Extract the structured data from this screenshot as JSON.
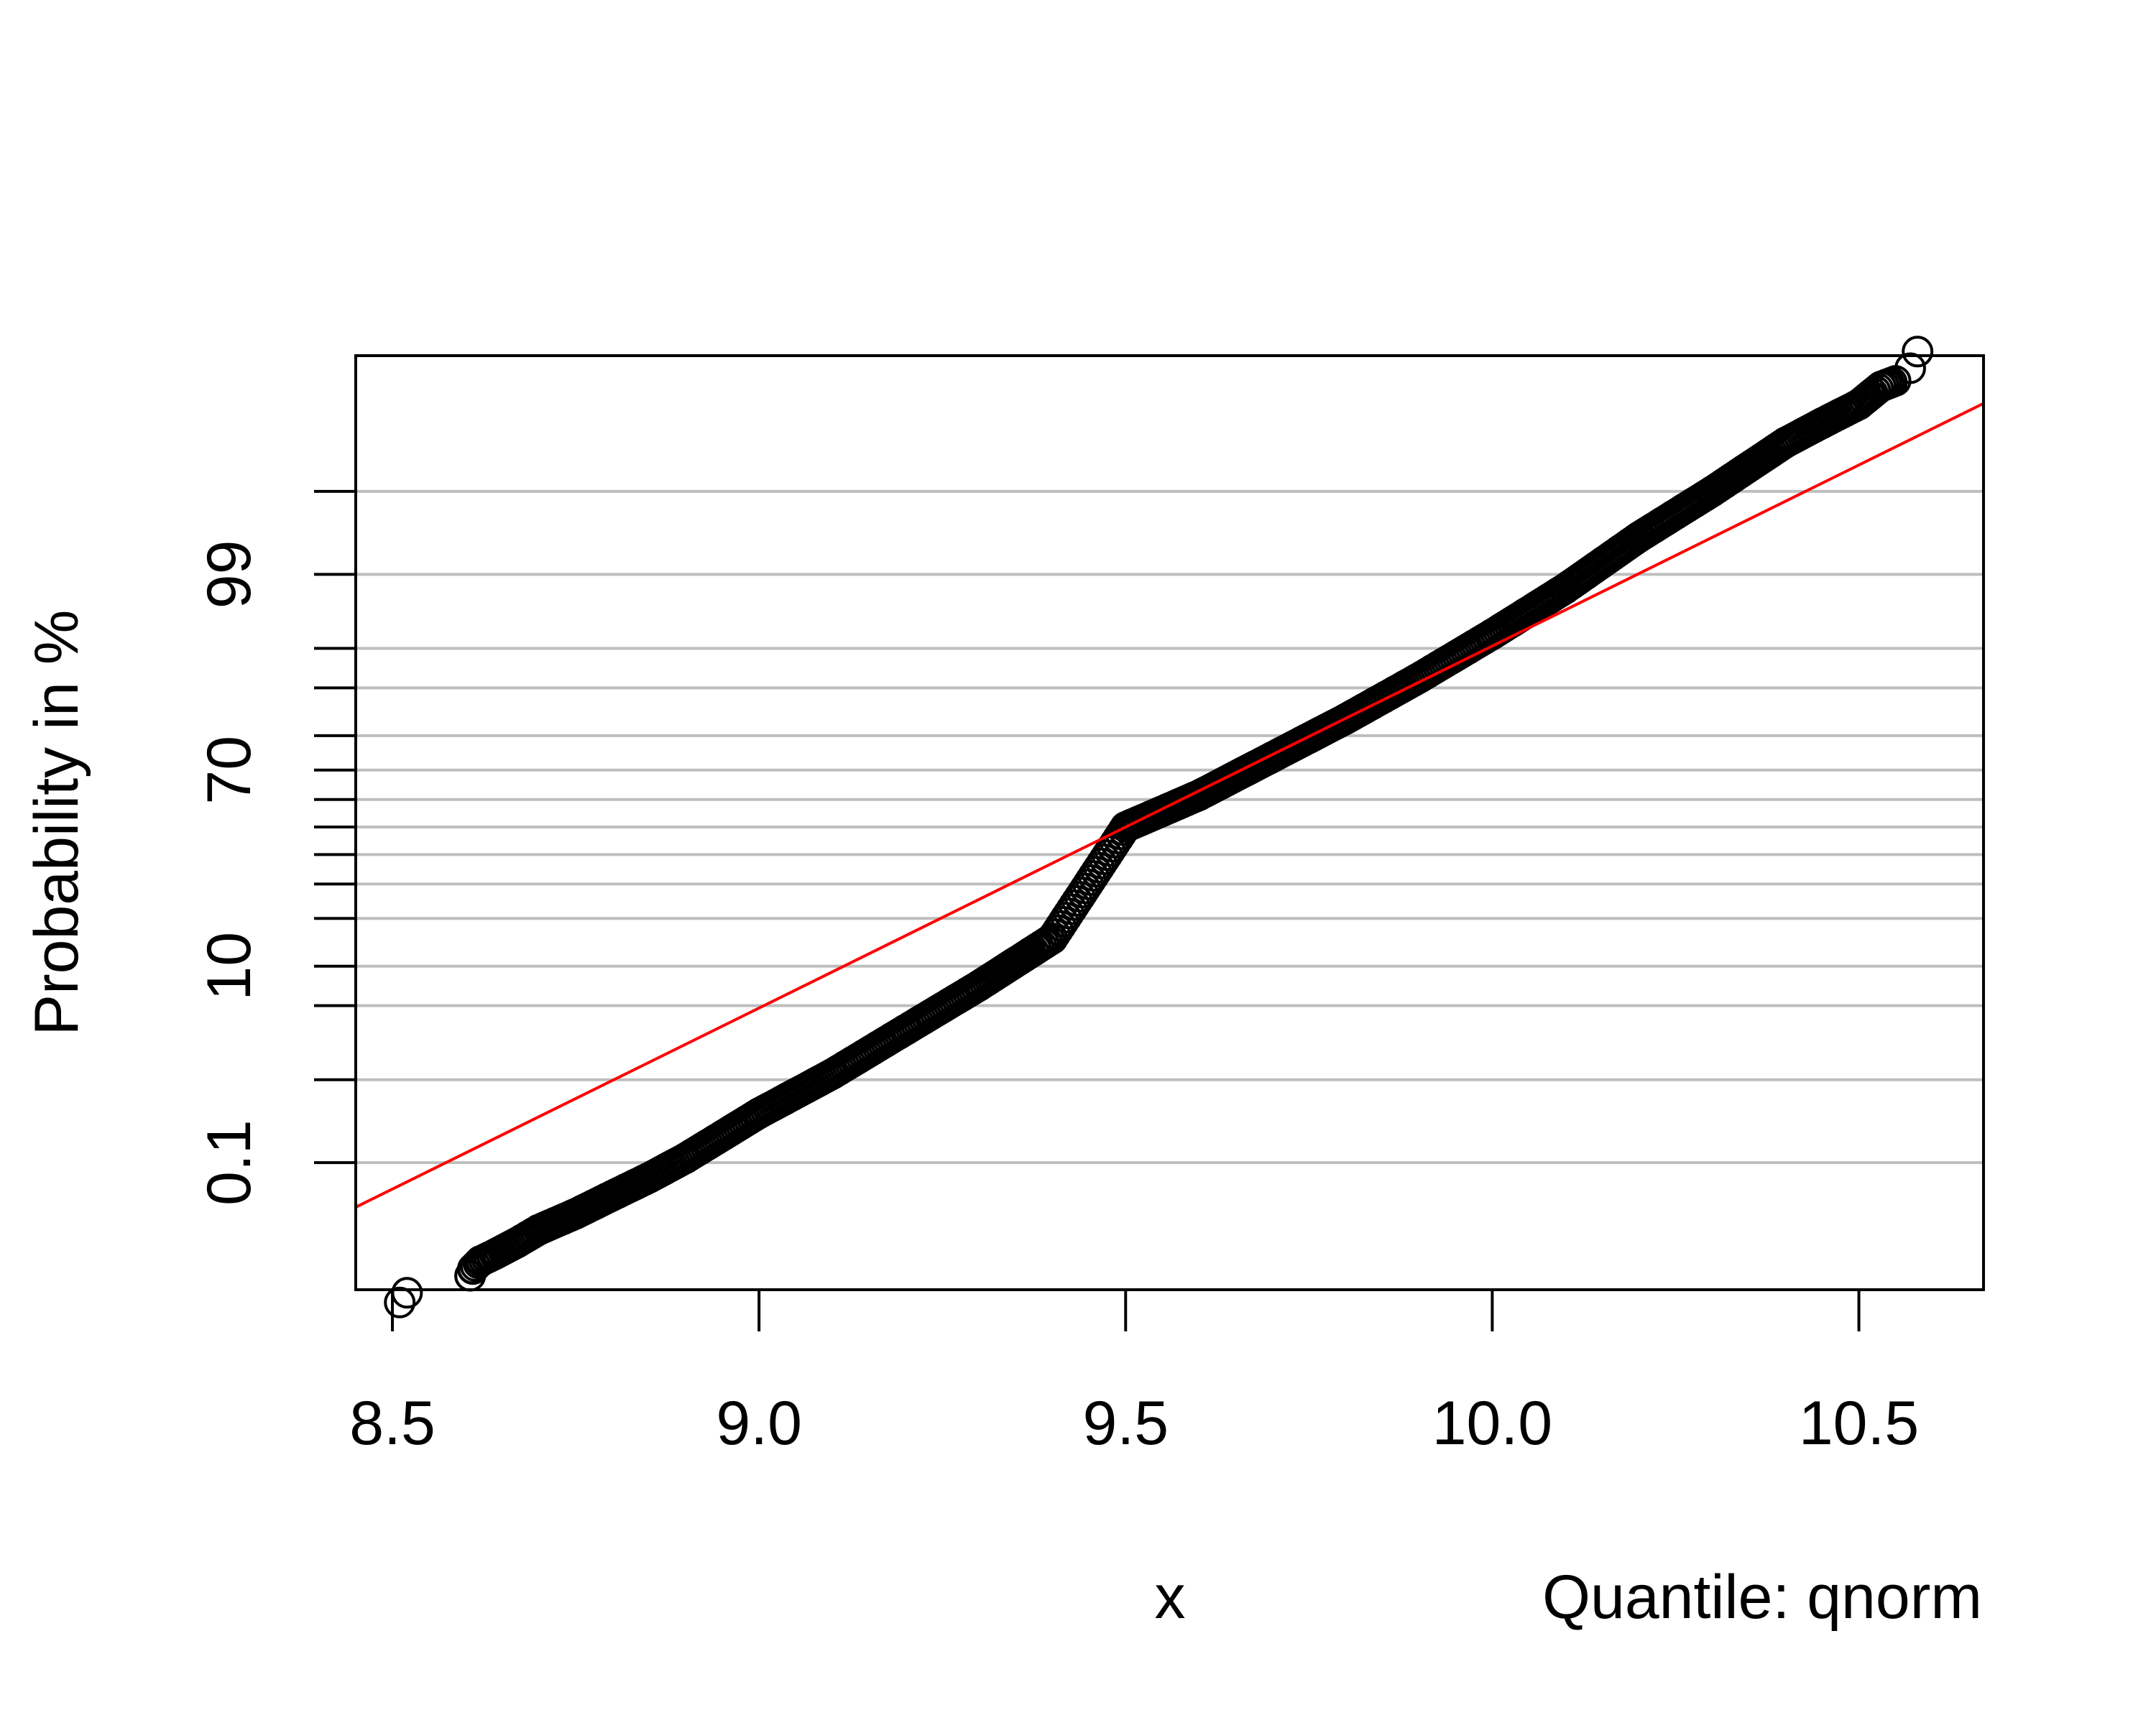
{
  "chart_data": {
    "type": "scatter",
    "title": "",
    "xlabel": "x",
    "ylabel": "Probability in %",
    "note": "Quantile: qnorm",
    "xlim": [
      8.45,
      10.67
    ],
    "x_ticks": [
      8.5,
      9.0,
      9.5,
      10.0,
      10.5
    ],
    "x_tick_labels": [
      "8.5",
      "9.0",
      "9.5",
      "10.0",
      "10.5"
    ],
    "y_scale": "normal-quantile",
    "y_ticks_percent": [
      0.1,
      1,
      5,
      10,
      20,
      30,
      40,
      50,
      60,
      70,
      80,
      90,
      95,
      99,
      99.9
    ],
    "y_tick_labels": [
      {
        "value": 0.1,
        "label": "0.1"
      },
      {
        "value": 10,
        "label": "10"
      },
      {
        "value": 70,
        "label": "70"
      },
      {
        "value": 99,
        "label": "99"
      }
    ],
    "grid": "horizontal",
    "fit_line": {
      "mean": 9.5,
      "sd": 0.3,
      "color": "#ff0000"
    },
    "series": [
      {
        "style": "open-circle",
        "points": [
          {
            "x": 8.51,
            "p": 0.0006
          },
          {
            "x": 8.52,
            "p": 0.0009
          },
          {
            "x": 8.606,
            "p": 0.0018
          },
          {
            "x": 8.61,
            "p": 0.0024
          },
          {
            "x": 8.62,
            "p": 0.0032
          },
          {
            "x": 8.64,
            "p": 0.0042
          },
          {
            "x": 8.67,
            "p": 0.0065
          },
          {
            "x": 8.7,
            "p": 0.0105
          },
          {
            "x": 8.75,
            "p": 0.0185
          },
          {
            "x": 8.8,
            "p": 0.0345
          },
          {
            "x": 8.85,
            "p": 0.062
          },
          {
            "x": 8.9,
            "p": 0.115
          },
          {
            "x": 9.0,
            "p": 0.42
          },
          {
            "x": 9.1,
            "p": 1.15
          },
          {
            "x": 9.2,
            "p": 3.1
          },
          {
            "x": 9.3,
            "p": 7.2
          },
          {
            "x": 9.4,
            "p": 15.2
          },
          {
            "x": 9.5,
            "p": 50.0
          },
          {
            "x": 9.6,
            "p": 61.5
          },
          {
            "x": 9.7,
            "p": 74.0
          },
          {
            "x": 9.8,
            "p": 84.0
          },
          {
            "x": 9.9,
            "p": 91.5
          },
          {
            "x": 10.0,
            "p": 96.2
          },
          {
            "x": 10.1,
            "p": 98.6
          },
          {
            "x": 10.2,
            "p": 99.62
          },
          {
            "x": 10.3,
            "p": 99.9
          },
          {
            "x": 10.4,
            "p": 99.98
          },
          {
            "x": 10.45,
            "p": 99.99
          },
          {
            "x": 10.5,
            "p": 99.995
          },
          {
            "x": 10.53,
            "p": 99.9975
          },
          {
            "x": 10.55,
            "p": 99.998
          },
          {
            "x": 10.57,
            "p": 99.9988
          },
          {
            "x": 10.58,
            "p": 99.9994
          }
        ]
      }
    ],
    "colors": {
      "points": "#000000",
      "fit_line": "#ff0000",
      "grid": "#bebebe",
      "axes": "#000000"
    }
  }
}
